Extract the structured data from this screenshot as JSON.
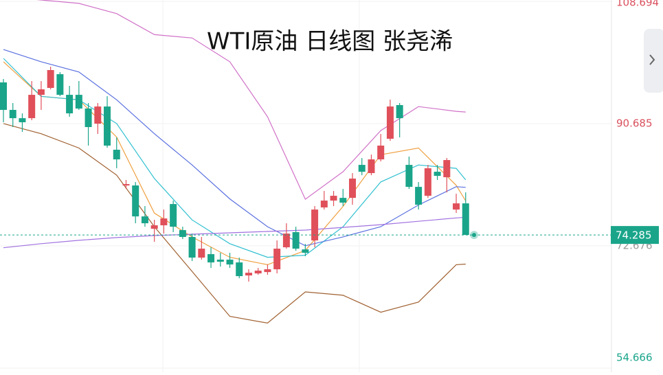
{
  "chart_data": {
    "type": "candlestick",
    "title": "WTI原油 日线图 张尧浠",
    "ylim": [
      54.06,
      108.9
    ],
    "yticks": [
      108.694,
      90.685,
      72.676,
      54.666
    ],
    "ytick_colors": [
      "#d9505e",
      "#d9505e",
      "#9a9a9a",
      "#1aa58a"
    ],
    "grid": true,
    "up_color": "#e0505a",
    "down_color": "#1aa58a",
    "last_price": 74.285,
    "open": [
      96.76,
      92.71,
      91.49,
      91.49,
      94.93,
      95.95,
      97.97,
      94.93,
      94.93,
      92.91,
      90.68,
      93.21,
      86.84,
      81.58,
      81.58,
      77.02,
      75.2,
      75.71,
      78.84,
      75.0,
      73.99,
      70.95,
      71.46,
      70.65,
      70.65,
      70.24,
      68.32,
      68.62,
      68.82,
      69.23,
      72.47,
      74.7,
      72.16,
      73.48,
      78.34,
      79.35,
      79.75,
      79.75,
      84.61,
      83.4,
      85.42,
      88.46,
      93.42,
      84.61,
      81.37,
      80.06,
      83.6,
      82.79,
      78.03,
      78.94
    ],
    "high": [
      97.26,
      93.72,
      92.2,
      96.96,
      96.96,
      99.08,
      98.27,
      96.25,
      96.96,
      93.72,
      93.72,
      94.73,
      88.66,
      82.39,
      82.08,
      78.54,
      76.52,
      78.03,
      79.35,
      75.5,
      74.49,
      73.99,
      72.47,
      71.66,
      71.66,
      70.95,
      69.23,
      69.43,
      69.94,
      73.48,
      76.01,
      75.5,
      72.97,
      78.54,
      80.77,
      80.77,
      81.07,
      83.4,
      85.62,
      86.13,
      89.17,
      94.23,
      93.72,
      85.83,
      82.08,
      84.61,
      84.61,
      85.62,
      80.36,
      80.56
    ],
    "low": [
      90.89,
      90.18,
      89.47,
      91.19,
      92.71,
      95.74,
      94.73,
      91.7,
      92.71,
      87.45,
      89.17,
      87.14,
      84.11,
      81.07,
      76.01,
      75.5,
      73.28,
      74.49,
      74.7,
      73.68,
      70.44,
      70.65,
      69.43,
      69.63,
      69.43,
      67.91,
      67.41,
      68.42,
      68.42,
      68.62,
      72.27,
      71.96,
      71.15,
      72.47,
      78.03,
      78.54,
      78.54,
      78.74,
      83.09,
      83.09,
      85.12,
      88.15,
      88.66,
      81.07,
      78.03,
      79.75,
      82.39,
      80.56,
      77.53,
      74.49
    ],
    "close": [
      92.71,
      91.49,
      90.89,
      94.93,
      95.74,
      98.58,
      94.93,
      92.2,
      92.91,
      90.18,
      93.21,
      87.45,
      85.42,
      81.78,
      77.02,
      76.01,
      75.71,
      76.72,
      75.5,
      73.99,
      70.95,
      72.27,
      70.24,
      70.34,
      69.94,
      68.22,
      68.72,
      69.03,
      69.23,
      72.27,
      74.49,
      72.27,
      71.66,
      78.03,
      79.35,
      80.06,
      79.05,
      82.59,
      83.6,
      85.42,
      87.45,
      93.21,
      91.49,
      81.37,
      78.74,
      84.11,
      82.99,
      85.32,
      78.94,
      74.285
    ],
    "line_x": [
      0,
      4,
      8,
      12,
      16,
      20,
      24,
      28,
      32,
      36,
      40,
      44,
      48,
      49
    ],
    "series": [
      {
        "color": "#d070c8",
        "values": [
          109.4,
          108.9,
          108.4,
          106.9,
          103.8,
          103.3,
          99.8,
          91.7,
          79.55,
          83.6,
          89.67,
          93.2,
          92.5,
          92.4
        ]
      },
      {
        "color": "#f0a040",
        "values": [
          99.8,
          94.7,
          94.2,
          88.7,
          77.5,
          74.0,
          71.0,
          69.9,
          72.0,
          78.5,
          86.1,
          87.1,
          81.6,
          79.3
        ]
      },
      {
        "color": "#30c0d0",
        "values": [
          100.3,
          94.7,
          94.2,
          90.7,
          82.6,
          76.5,
          73.0,
          71.0,
          71.3,
          75.5,
          82.1,
          84.6,
          84.1,
          82.4
        ]
      },
      {
        "color": "#5a70e0",
        "values": [
          101.6,
          99.8,
          98.3,
          94.2,
          89.2,
          84.6,
          79.6,
          75.5,
          72.7,
          74.0,
          75.5,
          78.7,
          81.4,
          81.3
        ]
      },
      {
        "color": "#a06030",
        "values": [
          90.7,
          89.2,
          87.1,
          83.1,
          75.5,
          68.9,
          62.3,
          61.3,
          65.9,
          65.4,
          62.9,
          64.4,
          69.9,
          70.0
        ]
      },
      {
        "color": "#a070e0",
        "values": [
          72.4,
          73.0,
          73.5,
          73.9,
          74.2,
          74.4,
          74.6,
          74.8,
          75.0,
          75.4,
          75.8,
          76.3,
          76.8,
          76.9
        ]
      }
    ]
  }
}
